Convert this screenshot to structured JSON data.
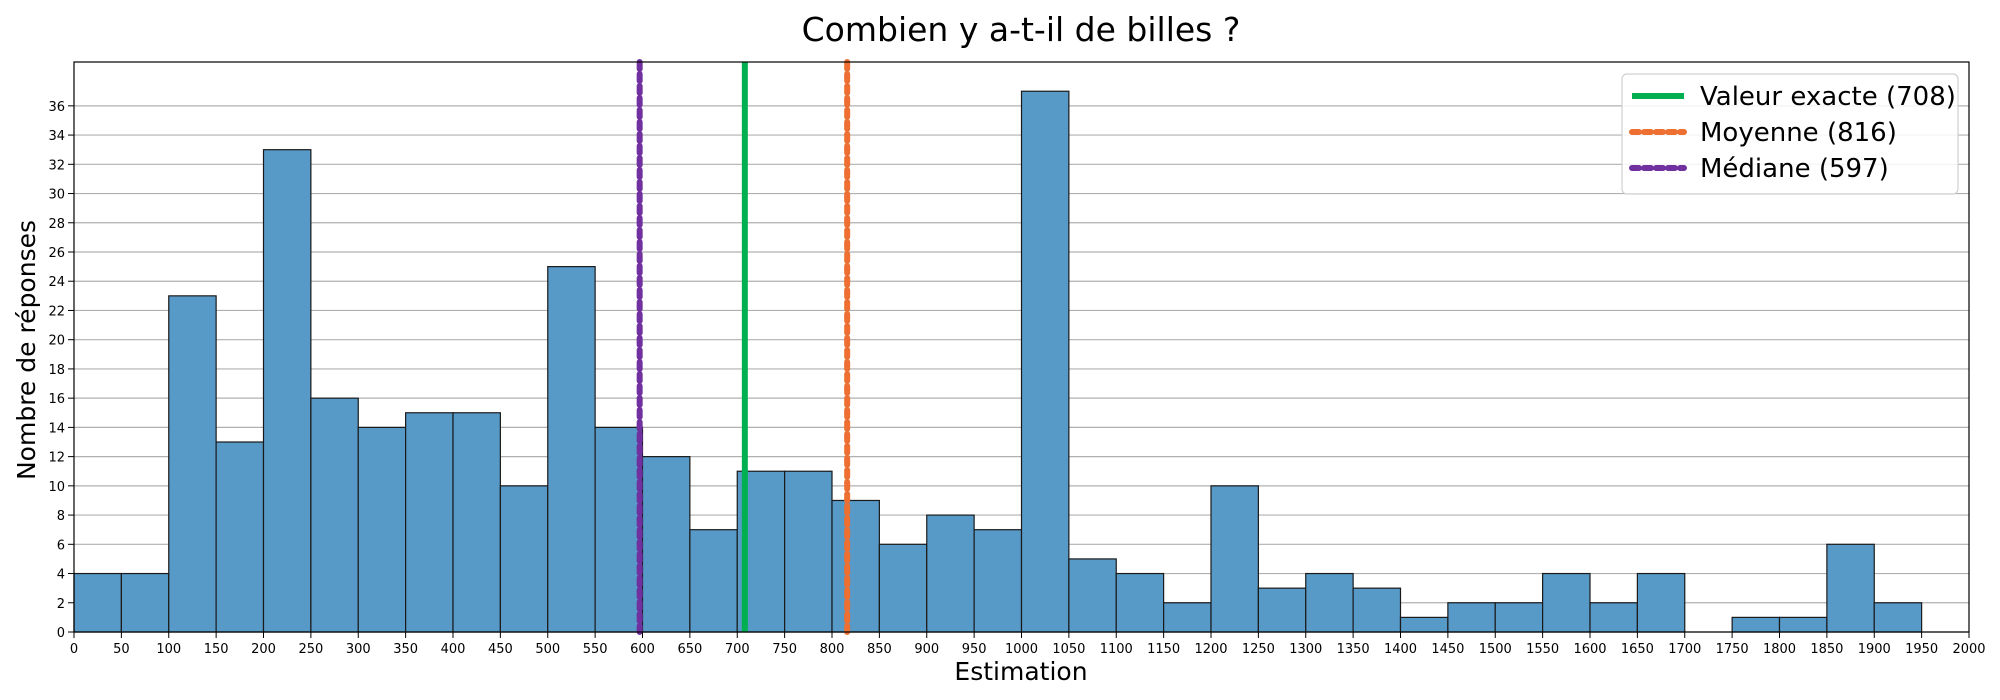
{
  "chart_data": {
    "type": "bar",
    "title": "Combien y a-t-il de billes ?",
    "xlabel": "Estimation",
    "ylabel": "Nombre de réponses",
    "xlim": [
      0,
      2000
    ],
    "ylim": [
      0,
      39
    ],
    "bin_width": 50,
    "x_ticks": [
      0,
      50,
      100,
      150,
      200,
      250,
      300,
      350,
      400,
      450,
      500,
      550,
      600,
      650,
      700,
      750,
      800,
      850,
      900,
      950,
      1000,
      1050,
      1100,
      1150,
      1200,
      1250,
      1300,
      1350,
      1400,
      1450,
      1500,
      1550,
      1600,
      1650,
      1700,
      1750,
      1800,
      1850,
      1900,
      1950,
      2000
    ],
    "y_ticks": [
      0,
      2,
      4,
      6,
      8,
      10,
      12,
      14,
      16,
      18,
      20,
      22,
      24,
      26,
      28,
      30,
      32,
      34,
      36
    ],
    "grid": "horizontal",
    "bar_color": "#5799c7",
    "bins": [
      {
        "start": 0,
        "count": 4
      },
      {
        "start": 50,
        "count": 4
      },
      {
        "start": 100,
        "count": 23
      },
      {
        "start": 150,
        "count": 13
      },
      {
        "start": 200,
        "count": 33
      },
      {
        "start": 250,
        "count": 16
      },
      {
        "start": 300,
        "count": 14
      },
      {
        "start": 350,
        "count": 15
      },
      {
        "start": 400,
        "count": 15
      },
      {
        "start": 450,
        "count": 10
      },
      {
        "start": 500,
        "count": 25
      },
      {
        "start": 550,
        "count": 14
      },
      {
        "start": 600,
        "count": 12
      },
      {
        "start": 650,
        "count": 7
      },
      {
        "start": 700,
        "count": 11
      },
      {
        "start": 750,
        "count": 11
      },
      {
        "start": 800,
        "count": 9
      },
      {
        "start": 850,
        "count": 6
      },
      {
        "start": 900,
        "count": 8
      },
      {
        "start": 950,
        "count": 7
      },
      {
        "start": 1000,
        "count": 37
      },
      {
        "start": 1050,
        "count": 5
      },
      {
        "start": 1100,
        "count": 4
      },
      {
        "start": 1150,
        "count": 2
      },
      {
        "start": 1200,
        "count": 10
      },
      {
        "start": 1250,
        "count": 3
      },
      {
        "start": 1300,
        "count": 4
      },
      {
        "start": 1350,
        "count": 3
      },
      {
        "start": 1400,
        "count": 1
      },
      {
        "start": 1450,
        "count": 2
      },
      {
        "start": 1500,
        "count": 2
      },
      {
        "start": 1550,
        "count": 4
      },
      {
        "start": 1600,
        "count": 2
      },
      {
        "start": 1650,
        "count": 4
      },
      {
        "start": 1700,
        "count": 0
      },
      {
        "start": 1750,
        "count": 1
      },
      {
        "start": 1800,
        "count": 1
      },
      {
        "start": 1850,
        "count": 6
      },
      {
        "start": 1900,
        "count": 2
      }
    ],
    "reference_lines": [
      {
        "name": "Valeur exacte (708)",
        "value": 708,
        "color": "#00b050",
        "style": "solid"
      },
      {
        "name": "Moyenne (816)",
        "value": 816,
        "color": "#ed7032",
        "style": "dotted"
      },
      {
        "name": "Médiane (597)",
        "value": 597,
        "color": "#7030a0",
        "style": "dotted"
      }
    ],
    "legend_position": "top-right"
  }
}
